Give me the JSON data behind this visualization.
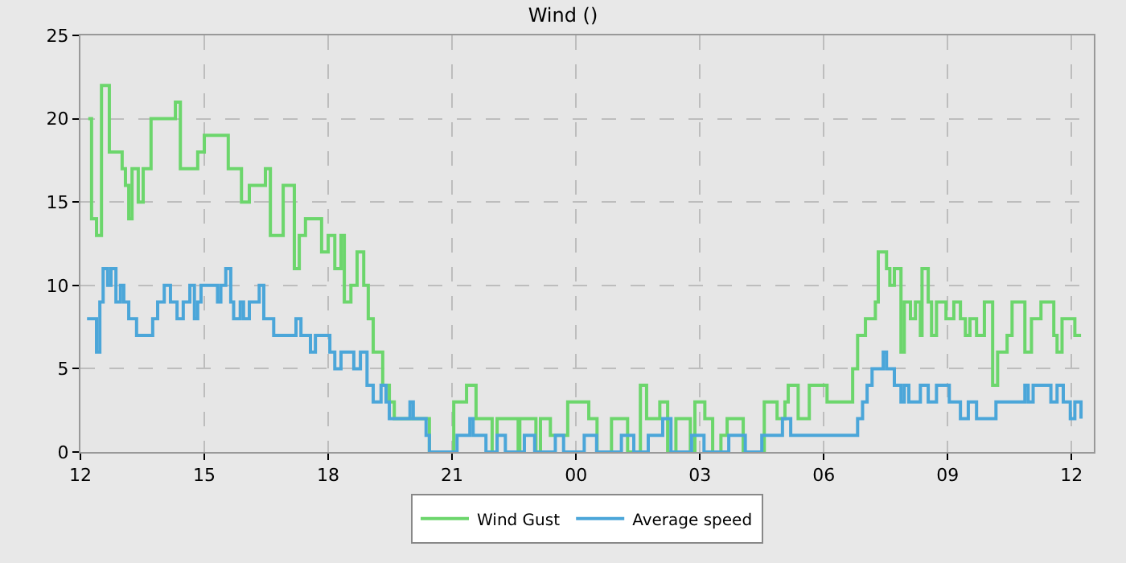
{
  "chart_data": {
    "type": "step",
    "title": "Wind ()",
    "xlim": [
      12,
      36.54
    ],
    "xticks": [
      {
        "value": 12,
        "label": "12"
      },
      {
        "value": 15,
        "label": "15"
      },
      {
        "value": 18,
        "label": "18"
      },
      {
        "value": 21,
        "label": "21"
      },
      {
        "value": 24,
        "label": "00"
      },
      {
        "value": 27,
        "label": "03"
      },
      {
        "value": 30,
        "label": "06"
      },
      {
        "value": 33,
        "label": "09"
      },
      {
        "value": 36,
        "label": "12"
      }
    ],
    "ylim": [
      0,
      25
    ],
    "yticks": [
      0,
      5,
      10,
      15,
      20,
      25
    ],
    "grid": true,
    "legend": "bottom",
    "line_style": "solid",
    "series": [
      {
        "name": "Wind Gust",
        "color": "#6cd66c",
        "x": [
          12.19,
          12.27,
          12.39,
          12.51,
          12.7,
          13.01,
          13.09,
          13.17,
          13.25,
          13.4,
          13.52,
          13.71,
          14.3,
          14.42,
          14.84,
          15.0,
          15.58,
          15.9,
          16.09,
          16.48,
          16.6,
          16.91,
          17.18,
          17.3,
          17.45,
          17.84,
          18.0,
          18.16,
          18.31,
          18.39,
          18.55,
          18.7,
          18.86,
          18.97,
          19.09,
          19.32,
          19.48,
          19.6,
          20.45,
          21.04,
          21.35,
          21.58,
          21.97,
          22.09,
          22.6,
          22.64,
          23.03,
          23.14,
          23.38,
          23.8,
          24.31,
          24.51,
          24.86,
          25.25,
          25.56,
          25.71,
          26.03,
          26.22,
          26.42,
          26.77,
          26.88,
          27.12,
          27.31,
          27.51,
          27.66,
          28.05,
          28.56,
          28.87,
          29.06,
          29.14,
          29.38,
          29.65,
          30.08,
          30.7,
          30.82,
          31.01,
          31.25,
          31.32,
          31.52,
          31.6,
          31.71,
          31.87,
          31.95,
          32.1,
          32.22,
          32.34,
          32.38,
          32.53,
          32.61,
          32.73,
          32.96,
          33.15,
          33.31,
          33.43,
          33.54,
          33.7,
          33.89,
          34.09,
          34.21,
          34.44,
          34.56,
          34.87,
          35.03,
          35.26,
          35.57,
          35.65,
          35.77,
          36.08,
          36.23
        ],
        "values": [
          20,
          14,
          13,
          22,
          18,
          17,
          16,
          14,
          17,
          15,
          17,
          20,
          21,
          17,
          18,
          19,
          17,
          15,
          16,
          17,
          13,
          16,
          11,
          13,
          14,
          12,
          13,
          11,
          13,
          9,
          10,
          12,
          10,
          8,
          6,
          4,
          3,
          2,
          0,
          3,
          4,
          2,
          0,
          2,
          0,
          2,
          0,
          2,
          1,
          3,
          2,
          0,
          2,
          0,
          4,
          2,
          3,
          0,
          2,
          0,
          3,
          2,
          0,
          1,
          2,
          0,
          3,
          2,
          3,
          4,
          2,
          4,
          3,
          5,
          7,
          8,
          9,
          12,
          11,
          10,
          11,
          6,
          9,
          8,
          9,
          7,
          11,
          9,
          7,
          9,
          8,
          9,
          8,
          7,
          8,
          7,
          9,
          4,
          6,
          7,
          9,
          6,
          8,
          9,
          7,
          6,
          8,
          7,
          7
        ]
      },
      {
        "name": "Average speed",
        "color": "#4ba6d9",
        "x": [
          12.16,
          12.39,
          12.47,
          12.55,
          12.66,
          12.74,
          12.86,
          12.97,
          13.05,
          13.17,
          13.36,
          13.75,
          13.87,
          14.03,
          14.18,
          14.34,
          14.49,
          14.65,
          14.76,
          14.84,
          14.92,
          15.32,
          15.4,
          15.52,
          15.64,
          15.71,
          15.87,
          15.95,
          16.09,
          16.33,
          16.44,
          16.68,
          17.22,
          17.34,
          17.57,
          17.69,
          18.04,
          18.16,
          18.31,
          18.62,
          18.78,
          18.94,
          19.09,
          19.28,
          19.4,
          19.48,
          19.98,
          20.06,
          20.37,
          20.45,
          21.12,
          21.43,
          21.51,
          21.82,
          22.09,
          22.29,
          22.75,
          23.0,
          23.5,
          23.7,
          24.2,
          24.5,
          25.1,
          25.4,
          25.75,
          26.1,
          26.3,
          26.8,
          27.1,
          27.7,
          28.1,
          28.5,
          29.0,
          29.2,
          30.82,
          30.94,
          31.05,
          31.17,
          31.44,
          31.52,
          31.71,
          31.87,
          31.95,
          32.06,
          32.34,
          32.53,
          32.73,
          33.04,
          33.31,
          33.5,
          33.7,
          34.17,
          34.87,
          34.95,
          35.07,
          35.5,
          35.65,
          35.8,
          35.97,
          36.08,
          36.23
        ],
        "values": [
          8,
          6,
          9,
          11,
          10,
          11,
          9,
          10,
          9,
          8,
          7,
          8,
          9,
          10,
          9,
          8,
          9,
          10,
          8,
          9,
          10,
          9,
          10,
          11,
          9,
          8,
          9,
          8,
          9,
          10,
          8,
          7,
          8,
          7,
          6,
          7,
          6,
          5,
          6,
          5,
          6,
          4,
          3,
          4,
          3,
          2,
          3,
          2,
          1,
          0,
          1,
          2,
          1,
          0,
          1,
          0,
          1,
          0,
          1,
          0,
          1,
          0,
          1,
          0,
          1,
          2,
          0,
          1,
          0,
          1,
          0,
          1,
          2,
          1,
          2,
          3,
          4,
          5,
          6,
          5,
          4,
          3,
          4,
          3,
          4,
          3,
          4,
          3,
          2,
          3,
          2,
          3,
          4,
          3,
          4,
          3,
          4,
          3,
          2,
          3,
          2
        ]
      }
    ]
  }
}
